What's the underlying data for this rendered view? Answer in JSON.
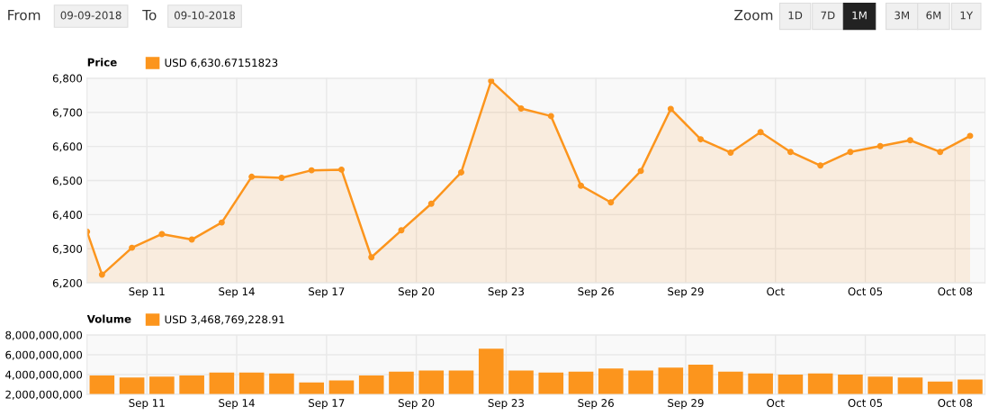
{
  "chart_data": [
    {
      "type": "area",
      "title": "Price",
      "legend": "top left",
      "marker": "circle",
      "grid": true,
      "annotations": [
        "From",
        "09-09-2018",
        "To",
        "09-10-2018",
        "Zoom",
        "1D",
        "7D",
        "1M",
        "3M",
        "6M",
        "1Y"
      ],
      "x": [
        "2018-09-09T00:00",
        "2018-09-09T12:00",
        "2018-09-10T12:00",
        "2018-09-11T12:00",
        "2018-09-12T12:00",
        "2018-09-13T12:00",
        "2018-09-14T12:00",
        "2018-09-15T12:00",
        "2018-09-16T12:00",
        "2018-09-17T12:00",
        "2018-09-18T12:00",
        "2018-09-19T12:00",
        "2018-09-20T12:00",
        "2018-09-21T12:00",
        "2018-09-22T12:00",
        "2018-09-23T12:00",
        "2018-09-24T12:00",
        "2018-09-25T12:00",
        "2018-09-26T12:00",
        "2018-09-27T12:00",
        "2018-09-28T12:00",
        "2018-09-29T12:00",
        "2018-09-30T12:00",
        "2018-10-01T12:00",
        "2018-10-02T12:00",
        "2018-10-03T12:00",
        "2018-10-04T12:00",
        "2018-10-05T12:00",
        "2018-10-06T12:00",
        "2018-10-07T12:00",
        "2018-10-08T12:00"
      ],
      "series": [
        {
          "name": "USD 6,630.67151823",
          "color": "#fc951d",
          "values": [
            6350,
            6224,
            6303,
            6343,
            6327,
            6377,
            6511,
            6508,
            6530,
            6532,
            6275,
            6354,
            6432,
            6524,
            6792,
            6711,
            6689,
            6485,
            6436,
            6528,
            6710,
            6621,
            6582,
            6642,
            6584,
            6544,
            6584,
            6601,
            6618,
            6584,
            6631
          ]
        }
      ],
      "xlim": [
        "2018-09-09",
        "2018-10-09"
      ],
      "xticks": [
        {
          "value": "2018-09-11",
          "label": "Sep 11"
        },
        {
          "value": "2018-09-14",
          "label": "Sep 14"
        },
        {
          "value": "2018-09-17",
          "label": "Sep 17"
        },
        {
          "value": "2018-09-20",
          "label": "Sep 20"
        },
        {
          "value": "2018-09-23",
          "label": "Sep 23"
        },
        {
          "value": "2018-09-26",
          "label": "Sep 26"
        },
        {
          "value": "2018-09-29",
          "label": "Sep 29"
        },
        {
          "value": "2018-10-02",
          "label": "Oct"
        },
        {
          "value": "2018-10-05",
          "label": "Oct 05"
        },
        {
          "value": "2018-10-08",
          "label": "Oct 08"
        }
      ],
      "ylim": [
        6200,
        6800
      ],
      "yticks": [
        {
          "value": 6200,
          "label": "6,200"
        },
        {
          "value": 6300,
          "label": "6,300"
        },
        {
          "value": 6400,
          "label": "6,400"
        },
        {
          "value": 6500,
          "label": "6,500"
        },
        {
          "value": 6600,
          "label": "6,600"
        },
        {
          "value": 6700,
          "label": "6,700"
        },
        {
          "value": 6800,
          "label": "6,800"
        }
      ]
    },
    {
      "type": "bar",
      "title": "Volume",
      "legend": "top left",
      "grid": true,
      "x": [
        "2018-09-09T12:00",
        "2018-09-10T12:00",
        "2018-09-11T12:00",
        "2018-09-12T12:00",
        "2018-09-13T12:00",
        "2018-09-14T12:00",
        "2018-09-15T12:00",
        "2018-09-16T12:00",
        "2018-09-17T12:00",
        "2018-09-18T12:00",
        "2018-09-19T12:00",
        "2018-09-20T12:00",
        "2018-09-21T12:00",
        "2018-09-22T12:00",
        "2018-09-23T12:00",
        "2018-09-24T12:00",
        "2018-09-25T12:00",
        "2018-09-26T12:00",
        "2018-09-27T12:00",
        "2018-09-28T12:00",
        "2018-09-29T12:00",
        "2018-09-30T12:00",
        "2018-10-01T12:00",
        "2018-10-02T12:00",
        "2018-10-03T12:00",
        "2018-10-04T12:00",
        "2018-10-05T12:00",
        "2018-10-06T12:00",
        "2018-10-07T12:00",
        "2018-10-08T12:00"
      ],
      "series": [
        {
          "name": "USD 3,468,769,228.91",
          "color": "#fc951d",
          "values": [
            3900000000,
            3700000000,
            3800000000,
            3900000000,
            4200000000,
            4200000000,
            4100000000,
            3200000000,
            3400000000,
            3900000000,
            4300000000,
            4400000000,
            4400000000,
            6600000000,
            4400000000,
            4200000000,
            4300000000,
            4600000000,
            4400000000,
            4700000000,
            5000000000,
            4300000000,
            4100000000,
            4000000000,
            4100000000,
            4000000000,
            3800000000,
            3700000000,
            3300000000,
            3500000000
          ]
        }
      ],
      "xlim": [
        "2018-09-09",
        "2018-10-09"
      ],
      "xticks": [
        {
          "value": "2018-09-11",
          "label": "Sep 11"
        },
        {
          "value": "2018-09-14",
          "label": "Sep 14"
        },
        {
          "value": "2018-09-17",
          "label": "Sep 17"
        },
        {
          "value": "2018-09-20",
          "label": "Sep 20"
        },
        {
          "value": "2018-09-23",
          "label": "Sep 23"
        },
        {
          "value": "2018-09-26",
          "label": "Sep 26"
        },
        {
          "value": "2018-09-29",
          "label": "Sep 29"
        },
        {
          "value": "2018-10-02",
          "label": "Oct"
        },
        {
          "value": "2018-10-05",
          "label": "Oct 05"
        },
        {
          "value": "2018-10-08",
          "label": "Oct 08"
        }
      ],
      "ylim": [
        2000000000,
        8000000000
      ],
      "yticks": [
        {
          "value": 2000000000,
          "label": "2,000,000,000"
        },
        {
          "value": 4000000000,
          "label": "4,000,000,000"
        },
        {
          "value": 6000000000,
          "label": "6,000,000,000"
        },
        {
          "value": 8000000000,
          "label": "8,000,000,000"
        }
      ]
    }
  ]
}
